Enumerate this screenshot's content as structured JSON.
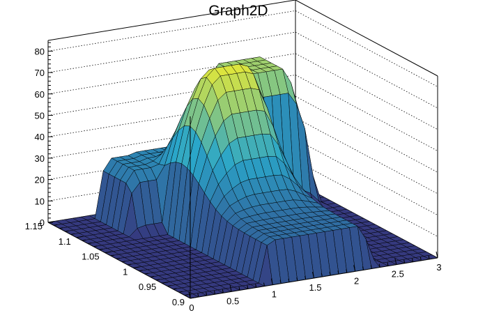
{
  "chart_data": {
    "type": "surface3d",
    "title": "Graph2D",
    "xlabel": "",
    "ylabel": "",
    "zlabel": "",
    "xlim": [
      0,
      3
    ],
    "ylim": [
      0.9,
      1.15
    ],
    "zlim": [
      0,
      85
    ],
    "x_ticks": [
      "0",
      "0.5",
      "1",
      "1.5",
      "2",
      "2.5",
      "3"
    ],
    "y_ticks": [
      "0.9",
      "0.95",
      "1",
      "1.05",
      "1.1",
      "1.15"
    ],
    "z_ticks": [
      "0",
      "10",
      "20",
      "30",
      "40",
      "50",
      "60",
      "70",
      "80"
    ],
    "grid": true,
    "colormap": "viridis-like",
    "colors": {
      "low": "#35397e",
      "mid": "#2aa6c9",
      "high": "#f6ee2a"
    }
  }
}
